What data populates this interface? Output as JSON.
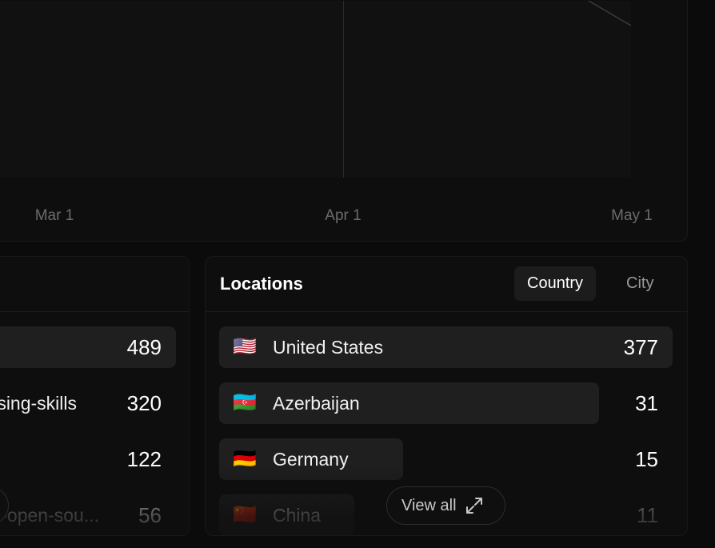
{
  "chart": {
    "x_ticks": [
      "Mar 1",
      "Apr 1",
      "May 1"
    ]
  },
  "left_card": {
    "rows": [
      {
        "name": "",
        "count": "489",
        "fraction": 1.0
      },
      {
        "name": "sing-skills",
        "count": "320",
        "fraction": 0.65
      },
      {
        "name": "",
        "count": "122",
        "fraction": 0.25
      },
      {
        "name": "-open-sou...",
        "count": "56",
        "fraction": 0.11
      }
    ]
  },
  "locations": {
    "title": "Locations",
    "tabs": [
      {
        "label": "Country",
        "active": true
      },
      {
        "label": "City",
        "active": false
      }
    ],
    "rows": [
      {
        "flag": "🇺🇸",
        "name": "United States",
        "count": "377",
        "fraction": 1.0
      },
      {
        "flag": "🇦🇿",
        "name": "Azerbaijan",
        "count": "31",
        "fraction": 0.082
      },
      {
        "flag": "🇩🇪",
        "name": "Germany",
        "count": "15",
        "fraction": 0.04
      },
      {
        "flag": "🇨🇳",
        "name": "China",
        "count": "11",
        "fraction": 0.029
      }
    ],
    "view_all_label": "View all",
    "view_all_icon": "expand-icon"
  }
}
